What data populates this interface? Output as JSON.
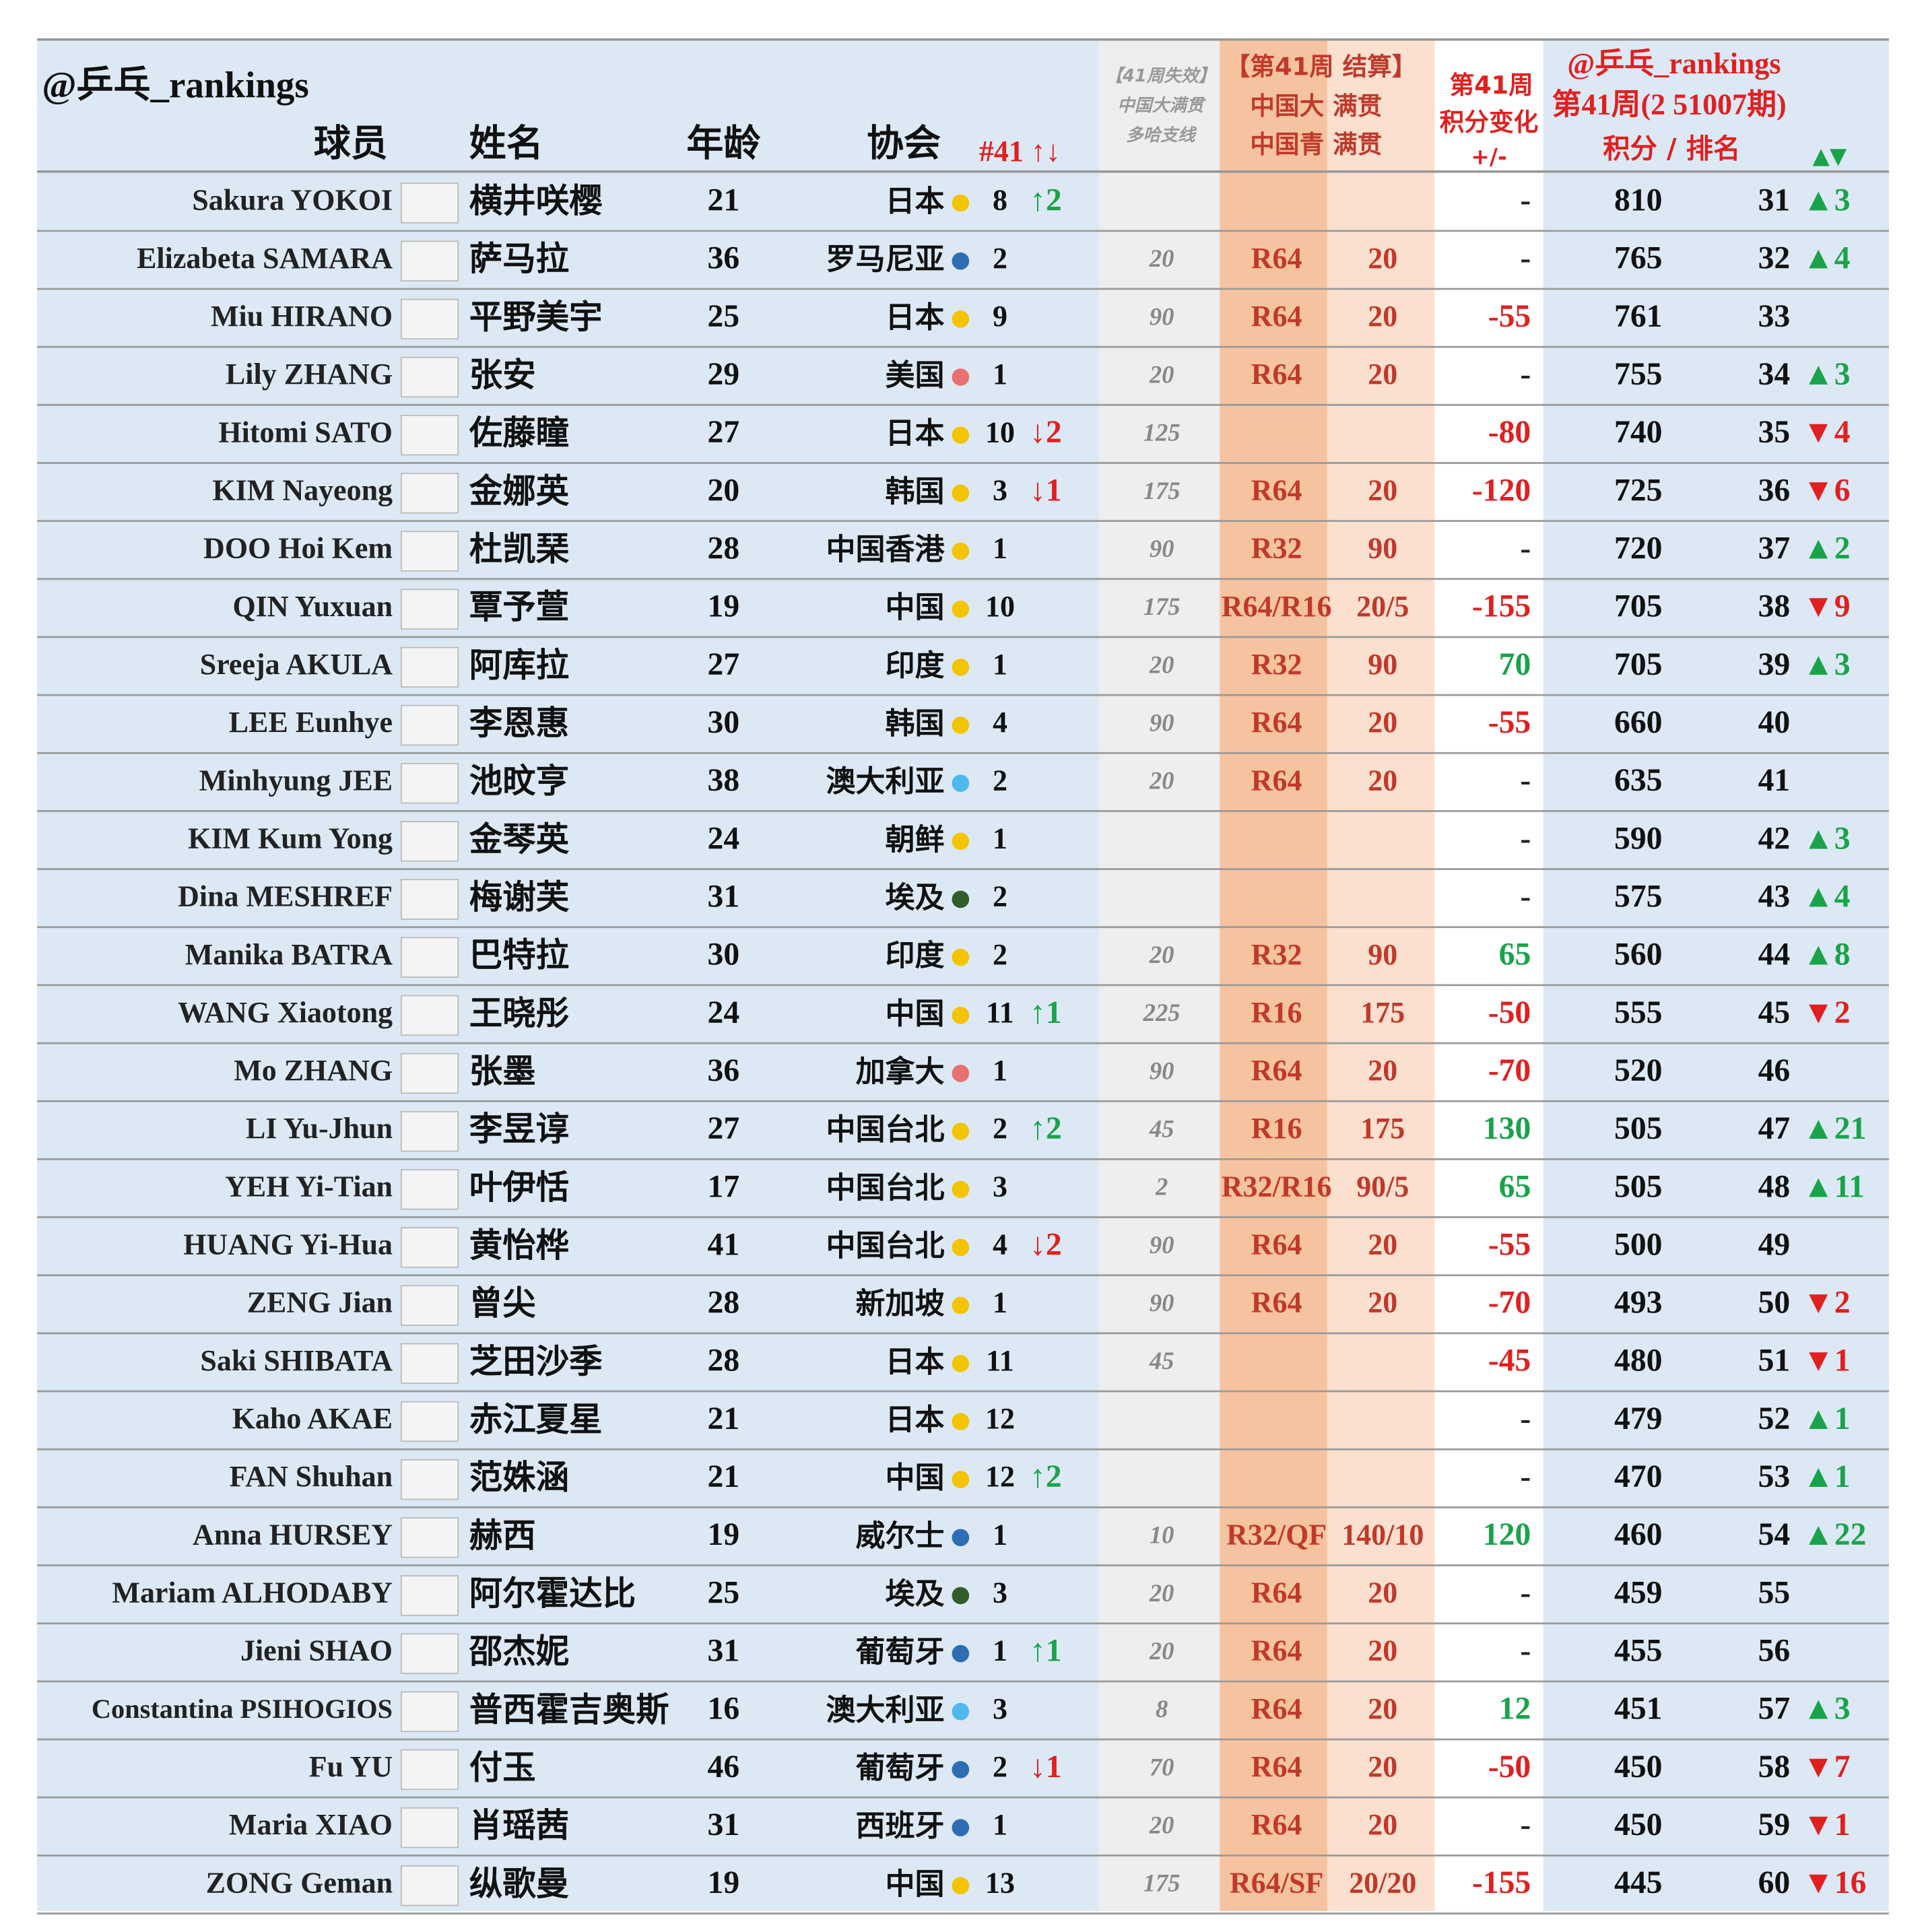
{
  "header": {
    "handle": "@乒乓_rankings",
    "col_player": "球员",
    "col_name": "姓名",
    "col_age": "年龄",
    "col_assoc": "协会",
    "col_assoc_rank": "#41 ↑↓",
    "lost": [
      "【41周失效】",
      "中国大满贯",
      "多哈支线"
    ],
    "result": [
      "【第41周 结算】",
      "中国大 满贯",
      "中国青 满贯"
    ],
    "change": [
      "第41周",
      "积分变化",
      "+/-"
    ],
    "ranking": [
      "@乒乓_rankings",
      "第41周(2 51007期)",
      "积分 / 排名",
      "▲▼"
    ]
  },
  "colors": {
    "up": "#1aa34a",
    "down": "#e02020"
  },
  "table": {
    "rows": [
      [
        "Sakura YOKOI",
        "横井咲樱",
        21,
        "日本",
        "#f5c400",
        8,
        "↑2",
        null,
        null,
        null,
        "-",
        810,
        31,
        "▲3"
      ],
      [
        "Elizabeta SAMARA",
        "萨马拉",
        36,
        "罗马尼亚",
        "#2e6db4",
        2,
        null,
        20,
        "R64",
        20,
        "-",
        765,
        32,
        "▲4"
      ],
      [
        "Miu HIRANO",
        "平野美宇",
        25,
        "日本",
        "#f5c400",
        9,
        null,
        90,
        "R64",
        20,
        -55,
        761,
        33,
        null
      ],
      [
        "Lily ZHANG",
        "张安",
        29,
        "美国",
        "#e87070",
        1,
        null,
        20,
        "R64",
        20,
        "-",
        755,
        34,
        "▲3"
      ],
      [
        "Hitomi SATO",
        "佐藤瞳",
        27,
        "日本",
        "#f5c400",
        10,
        "↓2",
        125,
        null,
        null,
        -80,
        740,
        35,
        "▼4"
      ],
      [
        "KIM Nayeong",
        "金娜英",
        20,
        "韩国",
        "#f5c400",
        3,
        "↓1",
        175,
        "R64",
        20,
        -120,
        725,
        36,
        "▼6"
      ],
      [
        "DOO Hoi Kem",
        "杜凯琹",
        28,
        "中国香港",
        "#f5c400",
        1,
        null,
        90,
        "R32",
        90,
        "-",
        720,
        37,
        "▲2"
      ],
      [
        "QIN Yuxuan",
        "覃予萱",
        19,
        "中国",
        "#f5c400",
        10,
        null,
        175,
        "R64/R16",
        "20/5",
        -155,
        705,
        38,
        "▼9"
      ],
      [
        "Sreeja AKULA",
        "阿库拉",
        27,
        "印度",
        "#f5c400",
        1,
        null,
        20,
        "R32",
        90,
        70,
        705,
        39,
        "▲3"
      ],
      [
        "LEE Eunhye",
        "李恩惠",
        30,
        "韩国",
        "#f5c400",
        4,
        null,
        90,
        "R64",
        20,
        -55,
        660,
        40,
        null
      ],
      [
        "Minhyung JEE",
        "池旼亨",
        38,
        "澳大利亚",
        "#4fb8ec",
        2,
        null,
        20,
        "R64",
        20,
        "-",
        635,
        41,
        null
      ],
      [
        "KIM Kum Yong",
        "金琴英",
        24,
        "朝鲜",
        "#f5c400",
        1,
        null,
        null,
        null,
        null,
        "-",
        590,
        42,
        "▲3"
      ],
      [
        "Dina MESHREF",
        "梅谢芙",
        31,
        "埃及",
        "#2f5e2a",
        2,
        null,
        null,
        null,
        null,
        "-",
        575,
        43,
        "▲4"
      ],
      [
        "Manika BATRA",
        "巴特拉",
        30,
        "印度",
        "#f5c400",
        2,
        null,
        20,
        "R32",
        90,
        65,
        560,
        44,
        "▲8"
      ],
      [
        "WANG Xiaotong",
        "王晓彤",
        24,
        "中国",
        "#f5c400",
        11,
        "↑1",
        225,
        "R16",
        175,
        -50,
        555,
        45,
        "▼2"
      ],
      [
        "Mo ZHANG",
        "张墨",
        36,
        "加拿大",
        "#e87070",
        1,
        null,
        90,
        "R64",
        20,
        -70,
        520,
        46,
        null
      ],
      [
        "LI Yu-Jhun",
        "李昱谆",
        27,
        "中国台北",
        "#f5c400",
        2,
        "↑2",
        45,
        "R16",
        175,
        130,
        505,
        47,
        "▲21"
      ],
      [
        "YEH Yi-Tian",
        "叶伊恬",
        17,
        "中国台北",
        "#f5c400",
        3,
        null,
        2,
        "R32/R16",
        "90/5",
        65,
        505,
        48,
        "▲11"
      ],
      [
        "HUANG Yi-Hua",
        "黄怡桦",
        41,
        "中国台北",
        "#f5c400",
        4,
        "↓2",
        90,
        "R64",
        20,
        -55,
        500,
        49,
        null
      ],
      [
        "ZENG Jian",
        "曾尖",
        28,
        "新加坡",
        "#f5c400",
        1,
        null,
        90,
        "R64",
        20,
        -70,
        493,
        50,
        "▼2"
      ],
      [
        "Saki SHIBATA",
        "芝田沙季",
        28,
        "日本",
        "#f5c400",
        11,
        null,
        45,
        null,
        null,
        -45,
        480,
        51,
        "▼1"
      ],
      [
        "Kaho AKAE",
        "赤江夏星",
        21,
        "日本",
        "#f5c400",
        12,
        null,
        null,
        null,
        null,
        "-",
        479,
        52,
        "▲1"
      ],
      [
        "FAN Shuhan",
        "范姝涵",
        21,
        "中国",
        "#f5c400",
        12,
        "↑2",
        null,
        null,
        null,
        "-",
        470,
        53,
        "▲1"
      ],
      [
        "Anna HURSEY",
        "赫西",
        19,
        "威尔士",
        "#2e6db4",
        1,
        null,
        10,
        "R32/QF",
        "140/10",
        120,
        460,
        54,
        "▲22"
      ],
      [
        "Mariam ALHODABY",
        "阿尔霍达比",
        25,
        "埃及",
        "#2f5e2a",
        3,
        null,
        20,
        "R64",
        20,
        "-",
        459,
        55,
        null
      ],
      [
        "Jieni SHAO",
        "邵杰妮",
        31,
        "葡萄牙",
        "#2e6db4",
        1,
        "↑1",
        20,
        "R64",
        20,
        "-",
        455,
        56,
        null
      ],
      [
        "Constantina PSIHOGIOS",
        "普西霍吉奥斯",
        16,
        "澳大利亚",
        "#4fb8ec",
        3,
        null,
        8,
        "R64",
        20,
        12,
        451,
        57,
        "▲3"
      ],
      [
        "Fu YU",
        "付玉",
        46,
        "葡萄牙",
        "#2e6db4",
        2,
        "↓1",
        70,
        "R64",
        20,
        -50,
        450,
        58,
        "▼7"
      ],
      [
        "Maria XIAO",
        "肖瑶茜",
        31,
        "西班牙",
        "#2e6db4",
        1,
        null,
        20,
        "R64",
        20,
        "-",
        450,
        59,
        "▼1"
      ],
      [
        "ZONG Geman",
        "纵歌曼",
        19,
        "中国",
        "#f5c400",
        13,
        null,
        175,
        "R64/SF",
        "20/20",
        -155,
        445,
        60,
        "▼16"
      ]
    ]
  }
}
